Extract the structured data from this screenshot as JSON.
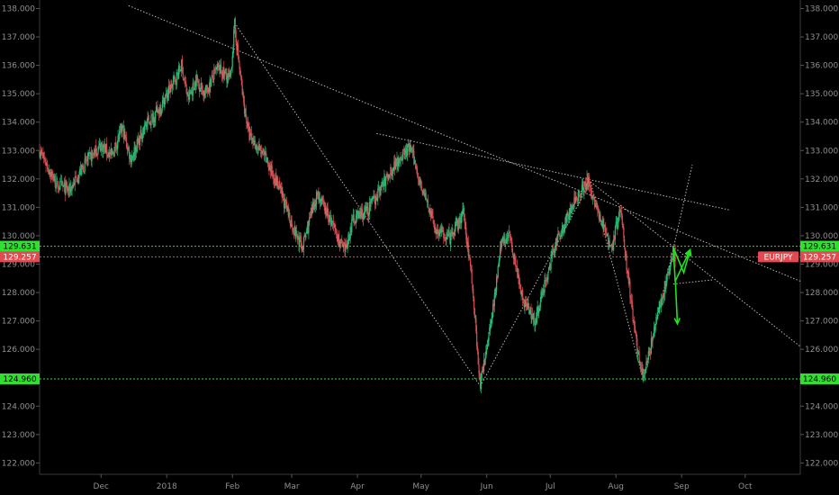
{
  "chart_data": {
    "type": "candlestick",
    "symbol": "EURJPY",
    "colors": {
      "up": "#27c07a",
      "down": "#d94f54",
      "background": "#000000",
      "axis_text": "#8f8f8f",
      "support": "#2fe02f",
      "current_line": "#e14a50",
      "trendline": "#d7d7d7",
      "arrow": "#23e023"
    },
    "ylim": [
      121.6,
      138.3
    ],
    "y_ticks": [
      "122.000",
      "123.000",
      "124.000",
      "125.000",
      "126.000",
      "127.000",
      "128.000",
      "129.000",
      "130.000",
      "131.000",
      "132.000",
      "133.000",
      "134.000",
      "135.000",
      "136.000",
      "137.000",
      "138.000"
    ],
    "x_ticks": [
      {
        "label": "Dec",
        "date": "2017-12-01"
      },
      {
        "label": "2018",
        "date": "2018-01-01"
      },
      {
        "label": "Feb",
        "date": "2018-02-01"
      },
      {
        "label": "Mar",
        "date": "2018-03-01"
      },
      {
        "label": "Apr",
        "date": "2018-04-01"
      },
      {
        "label": "May",
        "date": "2018-05-01"
      },
      {
        "label": "Jun",
        "date": "2018-06-01"
      },
      {
        "label": "Jul",
        "date": "2018-07-01"
      },
      {
        "label": "Aug",
        "date": "2018-08-01"
      },
      {
        "label": "Sep",
        "date": "2018-09-01"
      },
      {
        "label": "Oct",
        "date": "2018-10-01"
      }
    ],
    "x_range": [
      "2017-11-02",
      "2018-10-27"
    ],
    "price_path": [
      [
        "2017-11-02",
        133.0
      ],
      [
        "2017-11-10",
        131.8
      ],
      [
        "2017-11-16",
        131.6
      ],
      [
        "2017-11-24",
        132.6
      ],
      [
        "2017-12-01",
        133.2
      ],
      [
        "2017-12-06",
        132.8
      ],
      [
        "2017-12-11",
        133.8
      ],
      [
        "2017-12-15",
        132.7
      ],
      [
        "2017-12-22",
        133.9
      ],
      [
        "2017-12-28",
        134.4
      ],
      [
        "2018-01-05",
        135.5
      ],
      [
        "2018-01-08",
        136.0
      ],
      [
        "2018-01-11",
        134.8
      ],
      [
        "2018-01-15",
        135.5
      ],
      [
        "2018-01-19",
        135.0
      ],
      [
        "2018-01-25",
        135.9
      ],
      [
        "2018-01-31",
        135.5
      ],
      [
        "2018-02-02",
        137.4
      ],
      [
        "2018-02-06",
        134.8
      ],
      [
        "2018-02-09",
        133.5
      ],
      [
        "2018-02-16",
        132.8
      ],
      [
        "2018-02-23",
        131.7
      ],
      [
        "2018-03-02",
        130.2
      ],
      [
        "2018-03-06",
        129.6
      ],
      [
        "2018-03-13",
        131.5
      ],
      [
        "2018-03-20",
        130.4
      ],
      [
        "2018-03-26",
        129.4
      ],
      [
        "2018-03-30",
        130.6
      ],
      [
        "2018-04-06",
        130.9
      ],
      [
        "2018-04-13",
        131.8
      ],
      [
        "2018-04-20",
        132.7
      ],
      [
        "2018-04-26",
        133.1
      ],
      [
        "2018-05-01",
        131.8
      ],
      [
        "2018-05-08",
        130.2
      ],
      [
        "2018-05-15",
        129.9
      ],
      [
        "2018-05-21",
        130.8
      ],
      [
        "2018-05-25",
        128.5
      ],
      [
        "2018-05-29",
        124.7
      ],
      [
        "2018-06-04",
        127.5
      ],
      [
        "2018-06-08",
        129.8
      ],
      [
        "2018-06-12",
        130.0
      ],
      [
        "2018-06-18",
        127.8
      ],
      [
        "2018-06-24",
        127.0
      ],
      [
        "2018-06-28",
        128.2
      ],
      [
        "2018-07-04",
        129.8
      ],
      [
        "2018-07-10",
        130.8
      ],
      [
        "2018-07-16",
        131.7
      ],
      [
        "2018-07-19",
        131.9
      ],
      [
        "2018-07-24",
        130.7
      ],
      [
        "2018-07-30",
        129.6
      ],
      [
        "2018-08-03",
        130.9
      ],
      [
        "2018-08-07",
        128.4
      ],
      [
        "2018-08-11",
        126.0
      ],
      [
        "2018-08-14",
        125.0
      ],
      [
        "2018-08-19",
        126.6
      ],
      [
        "2018-08-23",
        127.9
      ],
      [
        "2018-08-28",
        129.3
      ],
      [
        "2018-08-29",
        129.26
      ]
    ],
    "horizontal_lines": [
      {
        "name": "resistance",
        "price": "129.631",
        "value": 129.631
      },
      {
        "name": "last-price",
        "price": "129.257",
        "value": 129.257,
        "label": "EURJPY"
      },
      {
        "name": "support",
        "price": "124.960",
        "value": 124.96
      }
    ],
    "trendlines": [
      {
        "from": [
          "2017-12-14",
          138.1
        ],
        "to": [
          "2018-10-27",
          128.4
        ]
      },
      {
        "from": [
          "2018-04-10",
          133.6
        ],
        "to": [
          "2018-09-24",
          130.9
        ]
      },
      {
        "from": [
          "2018-07-20",
          131.9
        ],
        "to": [
          "2018-10-27",
          126.1
        ]
      },
      {
        "from": [
          "2018-02-02",
          137.5
        ],
        "to": [
          "2018-05-29",
          124.7
        ]
      },
      {
        "from": [
          "2018-05-29",
          124.7
        ],
        "to": [
          "2018-07-20",
          131.9
        ]
      },
      {
        "from": [
          "2018-07-20",
          131.9
        ],
        "to": [
          "2018-08-14",
          124.9
        ]
      },
      {
        "from": [
          "2018-08-14",
          124.9
        ],
        "to": [
          "2018-09-06",
          132.5
        ]
      },
      {
        "from": [
          "2018-08-28",
          128.3
        ],
        "to": [
          "2018-09-16",
          128.45
        ]
      }
    ],
    "projection_arrows": [
      [
        [
          "2018-08-28",
          129.6
        ],
        [
          "2018-09-02",
          128.7
        ],
        [
          "2018-09-05",
          129.5
        ]
      ],
      [
        [
          "2018-08-28",
          129.6
        ],
        [
          "2018-08-29",
          128.4
        ],
        [
          "2018-09-05",
          129.5
        ]
      ],
      [
        [
          "2018-08-29",
          128.5
        ],
        [
          "2018-08-30",
          126.9
        ]
      ]
    ]
  }
}
